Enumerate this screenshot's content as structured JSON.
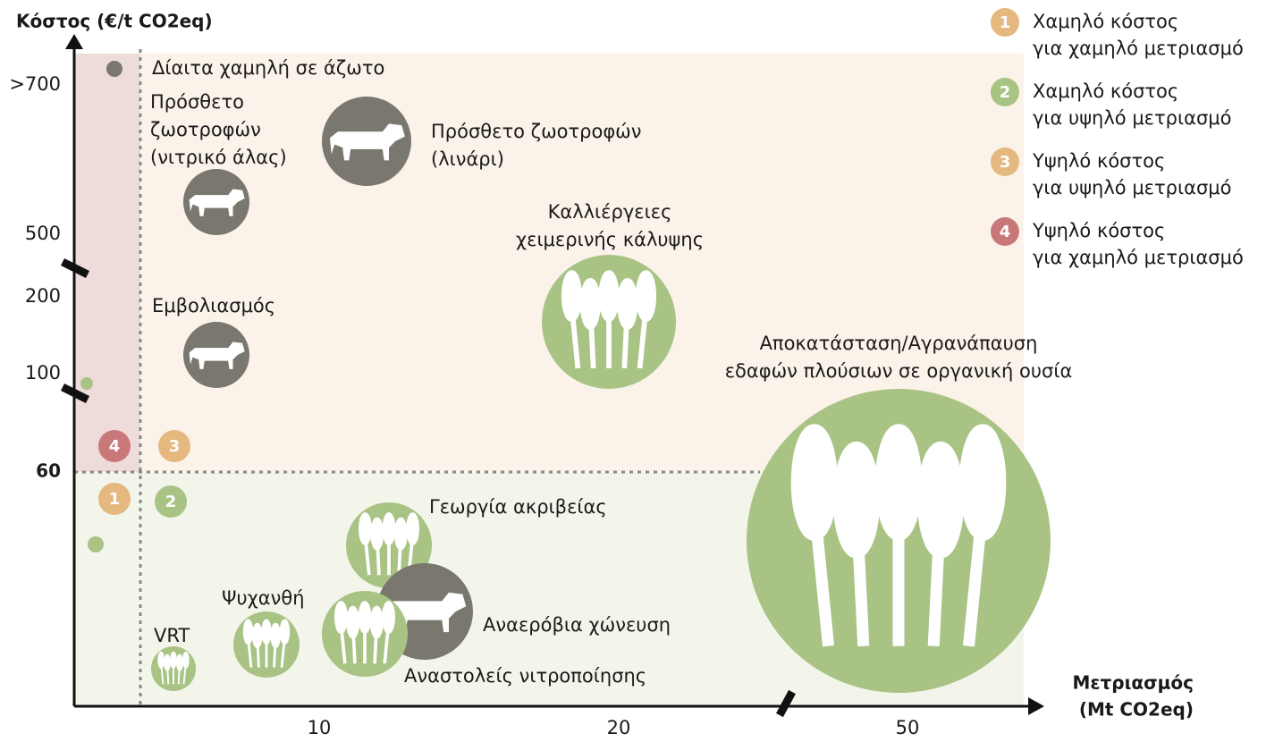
{
  "axes": {
    "y_title": "Κόστος (€/t CO2eq)",
    "y_ticks": [
      ">700",
      "500",
      "200",
      "100",
      "60"
    ],
    "x_ticks": [
      "10",
      "20",
      "50"
    ],
    "x_title": [
      "Μετριασμός",
      "(Mt CO2eq)"
    ]
  },
  "legend": [
    {
      "number": "1",
      "lines": [
        "Χαμηλό κόστος",
        "για χαμηλό μετριασμό"
      ]
    },
    {
      "number": "2",
      "lines": [
        "Χαμηλό κόστος",
        "για υψηλό μετριασμό"
      ]
    },
    {
      "number": "3",
      "lines": [
        "Υψηλό κόστος",
        "για υψηλό μετριασμό"
      ]
    },
    {
      "number": "4",
      "lines": [
        "Υψηλό κόστος",
        "για χαμηλό μετριασμό"
      ]
    }
  ],
  "labels": [
    {
      "lines": [
        "Δίαιτα χαμηλή σε άζωτο"
      ]
    },
    {
      "lines": [
        "Πρόσθετο",
        "ζωοτροφών",
        "(νιτρικό άλας)"
      ]
    },
    {
      "lines": [
        "Πρόσθετο ζωοτροφών",
        "(λινάρι)"
      ]
    },
    {
      "lines": [
        "Καλλιέργειες",
        "χειμερινής κάλυψης"
      ]
    },
    {
      "lines": [
        "Εμβολιασμός"
      ]
    },
    {
      "lines": [
        "Αποκατάσταση/Αγρανάπαυση",
        "εδαφών πλούσιων σε οργανική ουσία"
      ]
    },
    {
      "lines": [
        "Γεωργία ακριβείας"
      ]
    },
    {
      "lines": [
        "Ψυχανθή"
      ]
    },
    {
      "lines": [
        "Αναερόβια χώνευση"
      ]
    },
    {
      "lines": [
        "VRT"
      ]
    },
    {
      "lines": [
        "Αναστολείς νιτροποίησης"
      ]
    }
  ]
}
